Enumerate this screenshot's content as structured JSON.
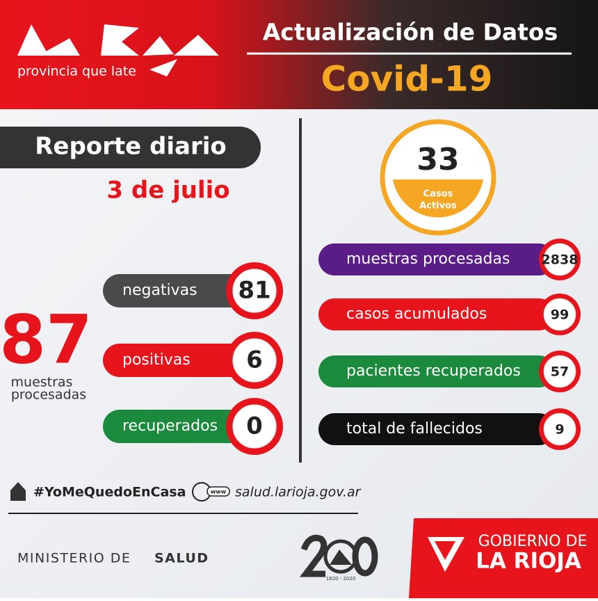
{
  "header": {
    "brand": "provincia que late",
    "title": "Actualización de Datos",
    "subtitle": "Covid-19"
  },
  "report": {
    "title": "Reporte diario",
    "date": "3 de julio",
    "total": 87,
    "total_label_1": "muestras",
    "total_label_2": "procesadas",
    "items": [
      {
        "label": "negativas",
        "value": 81,
        "color": "#4a4a4a"
      },
      {
        "label": "positivas",
        "value": 6,
        "color": "#e8141c"
      },
      {
        "label": "recuperados",
        "value": 0,
        "color": "#1b8a3c"
      }
    ]
  },
  "active": {
    "value": 33,
    "label_1": "Casos",
    "label_2": "Activos"
  },
  "stats": [
    {
      "label": "muestras procesadas",
      "value": 2838,
      "color": "#5a1d88"
    },
    {
      "label": "casos acumulados",
      "value": 99,
      "color": "#e8141c"
    },
    {
      "label": "pacientes recuperados",
      "value": 57,
      "color": "#1b8a3c"
    },
    {
      "label": "total de fallecidos",
      "value": 9,
      "color": "#111111"
    }
  ],
  "footer": {
    "hashtag": "#YoMeQuedoEnCasa",
    "url_icon": "www",
    "url": "salud.larioja.gov.ar",
    "ministry_prefix": "MINISTERIO DE",
    "ministry": "SALUD",
    "anniversary": "1820 - 2020",
    "gov_top": "GOBIERNO DE",
    "gov_bottom": "LA RIOJA"
  }
}
